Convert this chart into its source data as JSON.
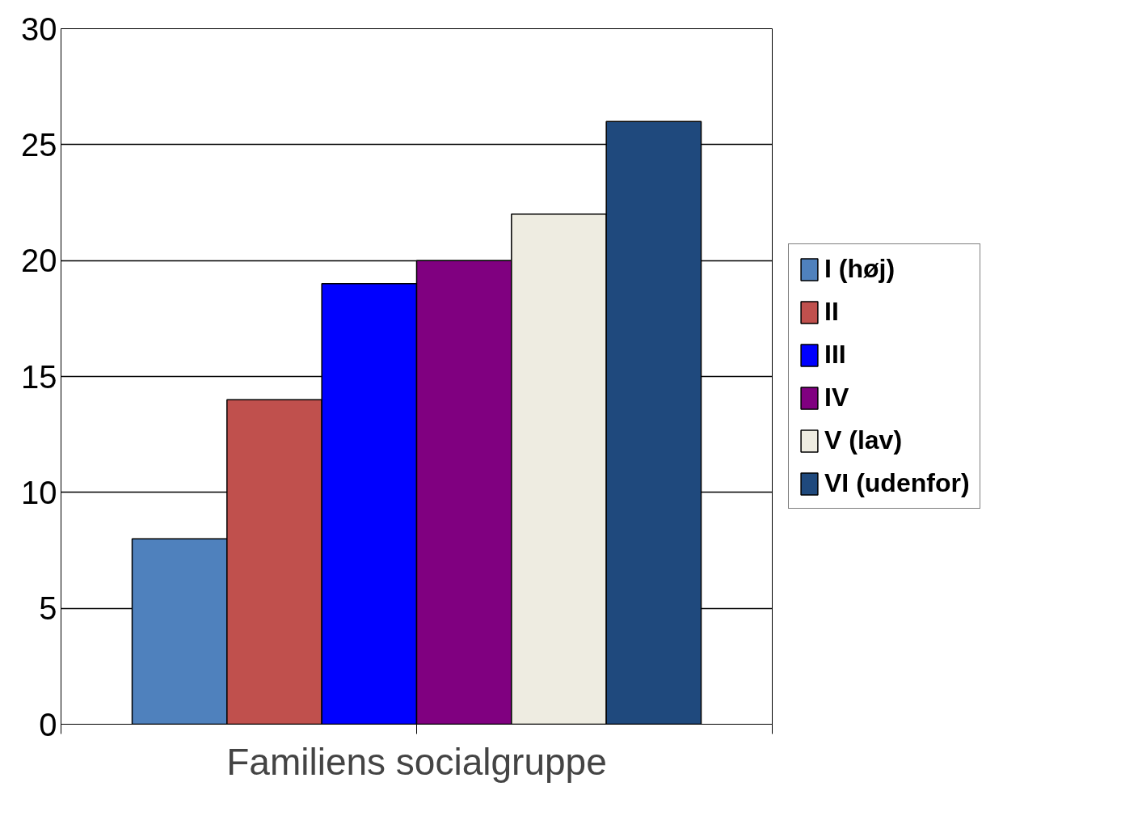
{
  "chart_data": {
    "type": "bar",
    "xlabel": "Familiens socialgruppe",
    "categories": [
      null
    ],
    "series": [
      {
        "name": "I (høj)",
        "color": "#4f81bd",
        "values": [
          8
        ]
      },
      {
        "name": "II",
        "color": "#c0504d",
        "values": [
          14
        ]
      },
      {
        "name": "III",
        "color": "#0000ff",
        "values": [
          19
        ]
      },
      {
        "name": "IV",
        "color": "#800080",
        "values": [
          20
        ]
      },
      {
        "name": "V (lav)",
        "color": "#eeece1",
        "values": [
          22
        ]
      },
      {
        "name": "VI (udenfor)",
        "color": "#1f497d",
        "values": [
          26
        ]
      }
    ],
    "ylim": [
      0,
      30
    ],
    "yticks": [
      0,
      5,
      10,
      15,
      20,
      25,
      30
    ],
    "grid": "y",
    "legend": "right"
  }
}
